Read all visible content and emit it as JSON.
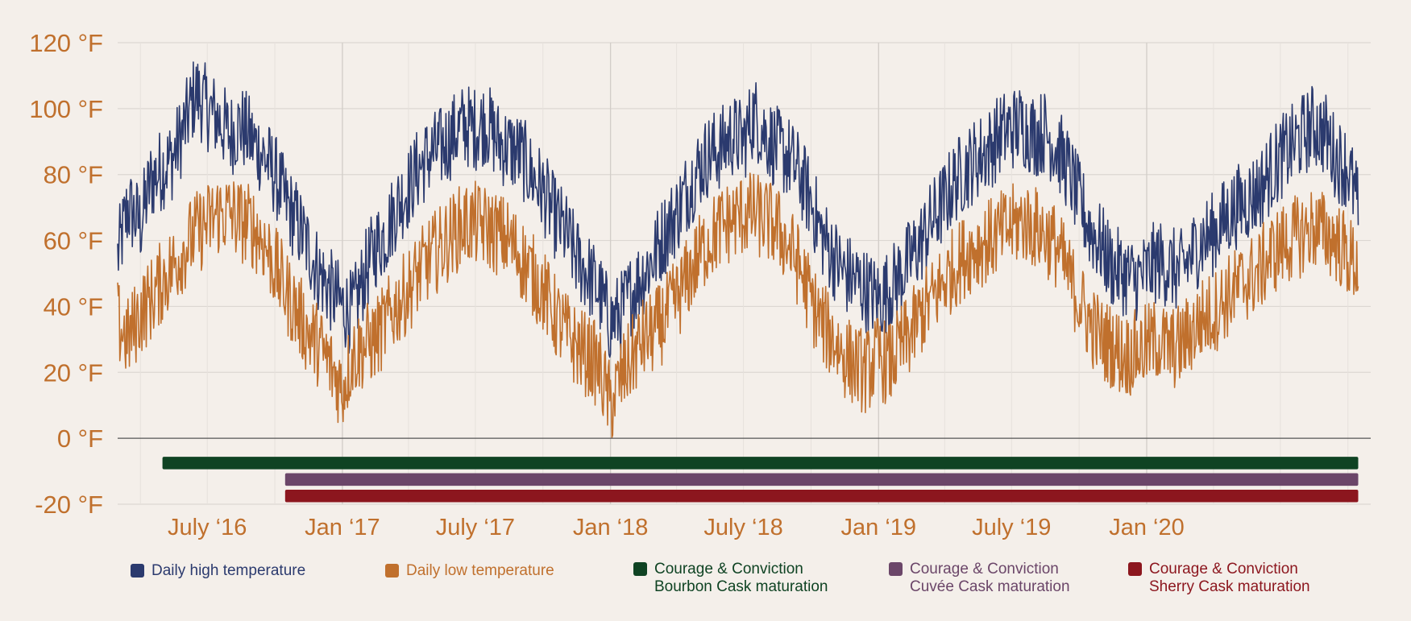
{
  "chart_data": {
    "type": "line",
    "title": "",
    "ylabel": "",
    "xlabel": "",
    "ylim": [
      -20,
      120
    ],
    "x_start": "2016-03-01",
    "x_end": "2020-11-01",
    "y_ticks": [
      {
        "value": 120,
        "label": "120 °F"
      },
      {
        "value": 100,
        "label": "100 °F"
      },
      {
        "value": 80,
        "label": "80 °F"
      },
      {
        "value": 60,
        "label": "60 °F"
      },
      {
        "value": 40,
        "label": "40 °F"
      },
      {
        "value": 20,
        "label": "20 °F"
      },
      {
        "value": 0,
        "label": "0 °F"
      },
      {
        "value": -20,
        "label": "-20 °F"
      }
    ],
    "x_ticks": [
      {
        "date": "2016-07-01",
        "label": "July ‘16"
      },
      {
        "date": "2017-01-01",
        "label": "Jan ‘17"
      },
      {
        "date": "2017-07-01",
        "label": "July ‘17"
      },
      {
        "date": "2018-01-01",
        "label": "Jan ‘18"
      },
      {
        "date": "2018-07-01",
        "label": "July ‘18"
      },
      {
        "date": "2019-01-01",
        "label": "Jan ‘19"
      },
      {
        "date": "2019-07-01",
        "label": "July ‘19"
      },
      {
        "date": "2020-01-01",
        "label": "Jan ‘20"
      }
    ],
    "series": [
      {
        "name": "Daily high temperature",
        "color": "#2b3a6e",
        "points": [
          [
            "2016-03-01",
            55
          ],
          [
            "2016-03-15",
            70
          ],
          [
            "2016-04-01",
            65
          ],
          [
            "2016-04-15",
            78
          ],
          [
            "2016-05-01",
            82
          ],
          [
            "2016-05-15",
            85
          ],
          [
            "2016-06-01",
            95
          ],
          [
            "2016-06-15",
            105
          ],
          [
            "2016-07-01",
            100
          ],
          [
            "2016-07-15",
            97
          ],
          [
            "2016-08-01",
            92
          ],
          [
            "2016-08-15",
            95
          ],
          [
            "2016-09-01",
            90
          ],
          [
            "2016-09-15",
            86
          ],
          [
            "2016-10-01",
            80
          ],
          [
            "2016-10-15",
            72
          ],
          [
            "2016-11-01",
            65
          ],
          [
            "2016-11-15",
            58
          ],
          [
            "2016-12-01",
            50
          ],
          [
            "2016-12-15",
            45
          ],
          [
            "2017-01-01",
            40
          ],
          [
            "2017-01-15",
            38
          ],
          [
            "2017-02-01",
            50
          ],
          [
            "2017-02-15",
            58
          ],
          [
            "2017-03-01",
            62
          ],
          [
            "2017-03-15",
            70
          ],
          [
            "2017-04-01",
            76
          ],
          [
            "2017-04-15",
            82
          ],
          [
            "2017-05-01",
            86
          ],
          [
            "2017-05-15",
            88
          ],
          [
            "2017-06-01",
            92
          ],
          [
            "2017-06-15",
            95
          ],
          [
            "2017-07-01",
            94
          ],
          [
            "2017-07-15",
            96
          ],
          [
            "2017-08-01",
            90
          ],
          [
            "2017-08-15",
            88
          ],
          [
            "2017-09-01",
            86
          ],
          [
            "2017-09-15",
            80
          ],
          [
            "2017-10-01",
            75
          ],
          [
            "2017-10-15",
            68
          ],
          [
            "2017-11-01",
            62
          ],
          [
            "2017-11-15",
            55
          ],
          [
            "2017-12-01",
            50
          ],
          [
            "2017-12-15",
            45
          ],
          [
            "2018-01-01",
            35
          ],
          [
            "2018-01-15",
            38
          ],
          [
            "2018-02-01",
            45
          ],
          [
            "2018-02-15",
            50
          ],
          [
            "2018-03-01",
            55
          ],
          [
            "2018-03-15",
            62
          ],
          [
            "2018-04-01",
            68
          ],
          [
            "2018-04-15",
            75
          ],
          [
            "2018-05-01",
            82
          ],
          [
            "2018-05-15",
            86
          ],
          [
            "2018-06-01",
            88
          ],
          [
            "2018-06-15",
            92
          ],
          [
            "2018-07-01",
            90
          ],
          [
            "2018-07-15",
            98
          ],
          [
            "2018-08-01",
            92
          ],
          [
            "2018-08-15",
            88
          ],
          [
            "2018-09-01",
            85
          ],
          [
            "2018-09-15",
            80
          ],
          [
            "2018-10-01",
            72
          ],
          [
            "2018-10-15",
            62
          ],
          [
            "2018-11-01",
            55
          ],
          [
            "2018-11-15",
            50
          ],
          [
            "2018-12-01",
            48
          ],
          [
            "2018-12-15",
            45
          ],
          [
            "2019-01-01",
            42
          ],
          [
            "2019-01-15",
            45
          ],
          [
            "2019-02-01",
            50
          ],
          [
            "2019-02-15",
            55
          ],
          [
            "2019-03-01",
            60
          ],
          [
            "2019-03-15",
            66
          ],
          [
            "2019-04-01",
            72
          ],
          [
            "2019-04-15",
            78
          ],
          [
            "2019-05-01",
            82
          ],
          [
            "2019-05-15",
            85
          ],
          [
            "2019-06-01",
            88
          ],
          [
            "2019-06-15",
            92
          ],
          [
            "2019-07-01",
            94
          ],
          [
            "2019-07-15",
            95
          ],
          [
            "2019-08-01",
            92
          ],
          [
            "2019-08-15",
            93
          ],
          [
            "2019-09-01",
            88
          ],
          [
            "2019-09-15",
            82
          ],
          [
            "2019-10-01",
            72
          ],
          [
            "2019-10-15",
            64
          ],
          [
            "2019-11-01",
            58
          ],
          [
            "2019-11-15",
            52
          ],
          [
            "2019-12-01",
            50
          ],
          [
            "2019-12-15",
            48
          ],
          [
            "2020-01-01",
            50
          ],
          [
            "2020-01-15",
            54
          ],
          [
            "2020-02-01",
            52
          ],
          [
            "2020-02-15",
            50
          ],
          [
            "2020-03-01",
            55
          ],
          [
            "2020-03-15",
            60
          ],
          [
            "2020-04-01",
            62
          ],
          [
            "2020-04-15",
            66
          ],
          [
            "2020-05-01",
            70
          ],
          [
            "2020-05-15",
            72
          ],
          [
            "2020-06-01",
            75
          ],
          [
            "2020-06-15",
            80
          ],
          [
            "2020-07-01",
            85
          ],
          [
            "2020-07-15",
            88
          ],
          [
            "2020-08-01",
            92
          ],
          [
            "2020-08-15",
            95
          ],
          [
            "2020-09-01",
            92
          ],
          [
            "2020-09-15",
            85
          ],
          [
            "2020-10-01",
            82
          ],
          [
            "2020-10-15",
            70
          ]
        ]
      },
      {
        "name": "Daily low temperature",
        "color": "#c0702d",
        "points": [
          [
            "2016-03-01",
            35
          ],
          [
            "2016-03-15",
            30
          ],
          [
            "2016-04-01",
            38
          ],
          [
            "2016-04-15",
            42
          ],
          [
            "2016-05-01",
            48
          ],
          [
            "2016-05-15",
            52
          ],
          [
            "2016-06-01",
            58
          ],
          [
            "2016-06-15",
            62
          ],
          [
            "2016-07-01",
            65
          ],
          [
            "2016-07-15",
            68
          ],
          [
            "2016-08-01",
            68
          ],
          [
            "2016-08-15",
            66
          ],
          [
            "2016-09-01",
            64
          ],
          [
            "2016-09-15",
            60
          ],
          [
            "2016-10-01",
            52
          ],
          [
            "2016-10-15",
            45
          ],
          [
            "2016-11-01",
            38
          ],
          [
            "2016-11-15",
            32
          ],
          [
            "2016-12-01",
            28
          ],
          [
            "2016-12-15",
            22
          ],
          [
            "2017-01-01",
            15
          ],
          [
            "2017-01-15",
            25
          ],
          [
            "2017-02-01",
            28
          ],
          [
            "2017-02-15",
            30
          ],
          [
            "2017-03-01",
            35
          ],
          [
            "2017-03-15",
            40
          ],
          [
            "2017-04-01",
            45
          ],
          [
            "2017-04-15",
            50
          ],
          [
            "2017-05-01",
            55
          ],
          [
            "2017-05-15",
            58
          ],
          [
            "2017-06-01",
            62
          ],
          [
            "2017-06-15",
            65
          ],
          [
            "2017-07-01",
            65
          ],
          [
            "2017-07-15",
            64
          ],
          [
            "2017-08-01",
            62
          ],
          [
            "2017-08-15",
            60
          ],
          [
            "2017-09-01",
            55
          ],
          [
            "2017-09-15",
            50
          ],
          [
            "2017-10-01",
            45
          ],
          [
            "2017-10-15",
            38
          ],
          [
            "2017-11-01",
            32
          ],
          [
            "2017-11-15",
            28
          ],
          [
            "2017-12-01",
            25
          ],
          [
            "2017-12-15",
            22
          ],
          [
            "2018-01-01",
            10
          ],
          [
            "2018-01-15",
            18
          ],
          [
            "2018-02-01",
            25
          ],
          [
            "2018-02-15",
            30
          ],
          [
            "2018-03-01",
            32
          ],
          [
            "2018-03-15",
            36
          ],
          [
            "2018-04-01",
            42
          ],
          [
            "2018-04-15",
            48
          ],
          [
            "2018-05-01",
            55
          ],
          [
            "2018-05-15",
            60
          ],
          [
            "2018-06-01",
            64
          ],
          [
            "2018-06-15",
            66
          ],
          [
            "2018-07-01",
            68
          ],
          [
            "2018-07-15",
            68
          ],
          [
            "2018-08-01",
            66
          ],
          [
            "2018-08-15",
            64
          ],
          [
            "2018-09-01",
            58
          ],
          [
            "2018-09-15",
            52
          ],
          [
            "2018-10-01",
            42
          ],
          [
            "2018-10-15",
            35
          ],
          [
            "2018-11-01",
            30
          ],
          [
            "2018-11-15",
            25
          ],
          [
            "2018-12-01",
            22
          ],
          [
            "2018-12-15",
            20
          ],
          [
            "2019-01-01",
            25
          ],
          [
            "2019-01-15",
            22
          ],
          [
            "2019-02-01",
            28
          ],
          [
            "2019-02-15",
            32
          ],
          [
            "2019-03-01",
            38
          ],
          [
            "2019-03-15",
            42
          ],
          [
            "2019-04-01",
            48
          ],
          [
            "2019-04-15",
            52
          ],
          [
            "2019-05-01",
            56
          ],
          [
            "2019-05-15",
            58
          ],
          [
            "2019-06-01",
            60
          ],
          [
            "2019-06-15",
            62
          ],
          [
            "2019-07-01",
            64
          ],
          [
            "2019-07-15",
            66
          ],
          [
            "2019-08-01",
            64
          ],
          [
            "2019-08-15",
            62
          ],
          [
            "2019-09-01",
            58
          ],
          [
            "2019-09-15",
            50
          ],
          [
            "2019-10-01",
            42
          ],
          [
            "2019-10-15",
            35
          ],
          [
            "2019-11-01",
            30
          ],
          [
            "2019-11-15",
            28
          ],
          [
            "2019-12-01",
            25
          ],
          [
            "2019-12-15",
            26
          ],
          [
            "2020-01-01",
            28
          ],
          [
            "2020-01-15",
            30
          ],
          [
            "2020-02-01",
            27
          ],
          [
            "2020-02-15",
            28
          ],
          [
            "2020-03-01",
            32
          ],
          [
            "2020-03-15",
            36
          ],
          [
            "2020-04-01",
            38
          ],
          [
            "2020-04-15",
            42
          ],
          [
            "2020-05-01",
            45
          ],
          [
            "2020-05-15",
            48
          ],
          [
            "2020-06-01",
            50
          ],
          [
            "2020-06-15",
            55
          ],
          [
            "2020-07-01",
            58
          ],
          [
            "2020-07-15",
            60
          ],
          [
            "2020-08-01",
            62
          ],
          [
            "2020-08-15",
            64
          ],
          [
            "2020-09-01",
            62
          ],
          [
            "2020-09-15",
            60
          ],
          [
            "2020-10-01",
            55
          ],
          [
            "2020-10-15",
            52
          ]
        ]
      }
    ],
    "ranges": [
      {
        "name": "Courage & Conviction Bourbon Cask maturation",
        "color": "#0f4323",
        "start": "2016-05-01",
        "end": "2020-10-15",
        "y": -7.5
      },
      {
        "name": "Courage & Conviction Cuvée Cask maturation",
        "color": "#6b4669",
        "start": "2016-10-15",
        "end": "2020-10-15",
        "y": -12.5
      },
      {
        "name": "Courage & Conviction Sherry Cask maturation",
        "color": "#8c161e",
        "start": "2016-10-15",
        "end": "2020-10-15",
        "y": -17.5
      }
    ],
    "grid": true,
    "legend_position": "bottom"
  },
  "legend": {
    "items": [
      {
        "line1": "Daily high temperature",
        "line2": "",
        "color": "#2b3a6e"
      },
      {
        "line1": "Daily low temperature",
        "line2": "",
        "color": "#c0702d"
      },
      {
        "line1": "Courage & Conviction",
        "line2": "Bourbon Cask maturation",
        "color": "#0f4323"
      },
      {
        "line1": "Courage & Conviction",
        "line2": "Cuvée Cask maturation",
        "color": "#6b4669"
      },
      {
        "line1": "Courage & Conviction",
        "line2": "Sherry Cask maturation",
        "color": "#8c161e"
      }
    ]
  },
  "colors": {
    "background": "#f4efea",
    "axis_text": "#c0702d",
    "grid": "#dcd7d2"
  }
}
